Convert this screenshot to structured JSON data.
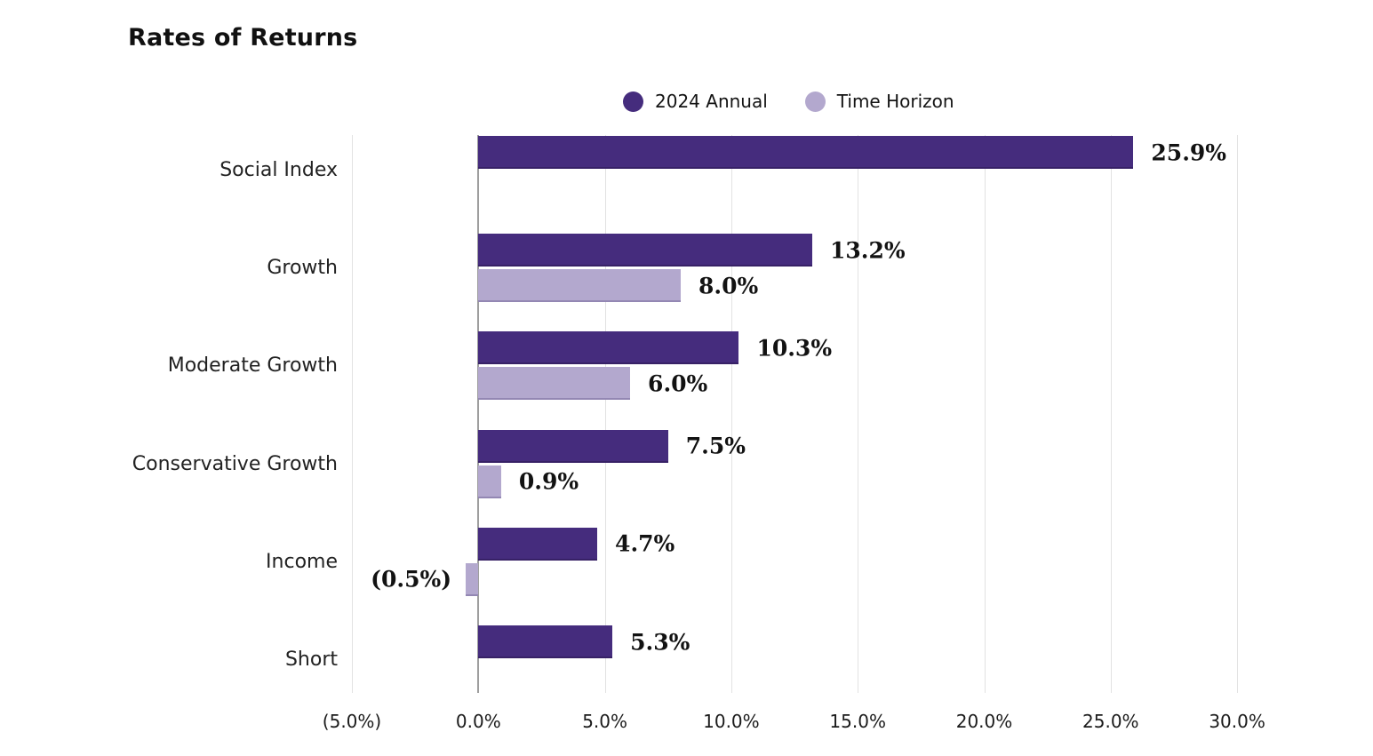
{
  "page": {
    "title": "Rates of Returns"
  },
  "legend": {
    "items": [
      {
        "label": "2024 Annual",
        "series": "annual"
      },
      {
        "label": "Time Horizon",
        "series": "horizon"
      }
    ]
  },
  "colors": {
    "annual": "#452C7D",
    "horizon": "#B3A8CE",
    "gridline": "#E2E2E2",
    "zero_line": "#9E9E9E",
    "text": "#141414"
  },
  "chart_data": {
    "type": "bar",
    "orientation": "horizontal",
    "title": "Rates of Returns",
    "categories": [
      "Social Index",
      "Growth",
      "Moderate Growth",
      "Conservative Growth",
      "Income",
      "Short"
    ],
    "series": [
      {
        "name": "2024 Annual",
        "color": "#452C7D",
        "values": [
          25.9,
          13.2,
          10.3,
          7.5,
          4.7,
          5.3
        ],
        "labels": [
          "25.9%",
          "13.2%",
          "10.3%",
          "7.5%",
          "4.7%",
          "5.3%"
        ]
      },
      {
        "name": "Time Horizon",
        "color": "#B3A8CE",
        "values": [
          null,
          8.0,
          6.0,
          0.9,
          -0.5,
          null
        ],
        "labels": [
          null,
          "8.0%",
          "6.0%",
          "0.9%",
          "(0.5%)",
          null
        ]
      }
    ],
    "x_ticks": [
      {
        "value": -5,
        "label": "(5.0%)"
      },
      {
        "value": 0,
        "label": "0.0%"
      },
      {
        "value": 5,
        "label": "5.0%"
      },
      {
        "value": 10,
        "label": "10.0%"
      },
      {
        "value": 15,
        "label": "15.0%"
      },
      {
        "value": 20,
        "label": "20.0%"
      },
      {
        "value": 25,
        "label": "25.0%"
      },
      {
        "value": 30,
        "label": "30.0%"
      }
    ],
    "xlim": [
      -5,
      31
    ],
    "grid": true,
    "legend_position": "top-center",
    "value_labels": true,
    "negative_format": "parentheses"
  }
}
